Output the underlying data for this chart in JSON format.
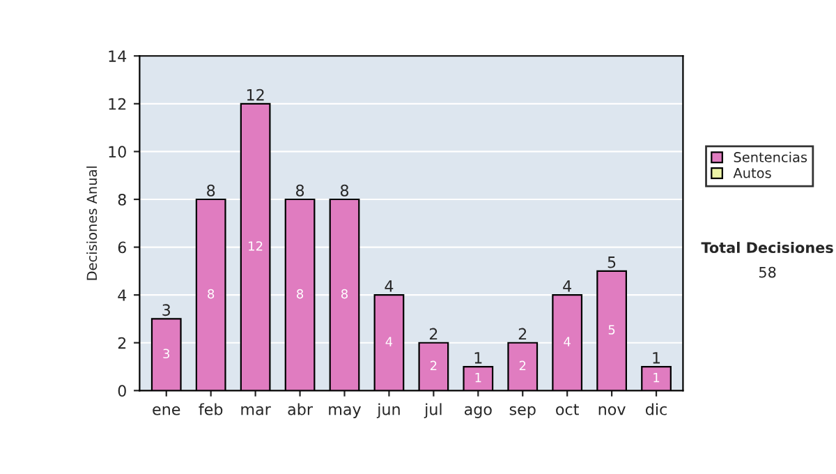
{
  "chart_data": {
    "type": "bar",
    "ylabel": "Decisiones Anual",
    "categories": [
      "ene",
      "feb",
      "mar",
      "abr",
      "may",
      "jun",
      "jul",
      "ago",
      "sep",
      "oct",
      "nov",
      "dic"
    ],
    "series": [
      {
        "name": "Sentencias",
        "color": "#e07cc0",
        "values": [
          3,
          8,
          12,
          8,
          8,
          4,
          2,
          1,
          2,
          4,
          5,
          1
        ],
        "value_labels": [
          "3",
          "8",
          "12",
          "8",
          "8",
          "4",
          "2",
          "1",
          "2",
          "4",
          "5",
          "1"
        ]
      },
      {
        "name": "Autos",
        "color": "#eef5a8",
        "values": [
          null,
          null,
          null,
          null,
          null,
          null,
          null,
          null,
          null,
          null,
          null,
          null
        ]
      }
    ],
    "stacked": true,
    "totals": [
      "3",
      "8",
      "12",
      "8",
      "8",
      "4",
      "2",
      "1",
      "2",
      "4",
      "5",
      "1"
    ],
    "ylim": [
      0,
      14
    ],
    "yticks": [
      0,
      2,
      4,
      6,
      8,
      10,
      12,
      14
    ],
    "grid": "y",
    "legend": "right",
    "annotations": [
      "Total Decisiones",
      "58"
    ]
  }
}
